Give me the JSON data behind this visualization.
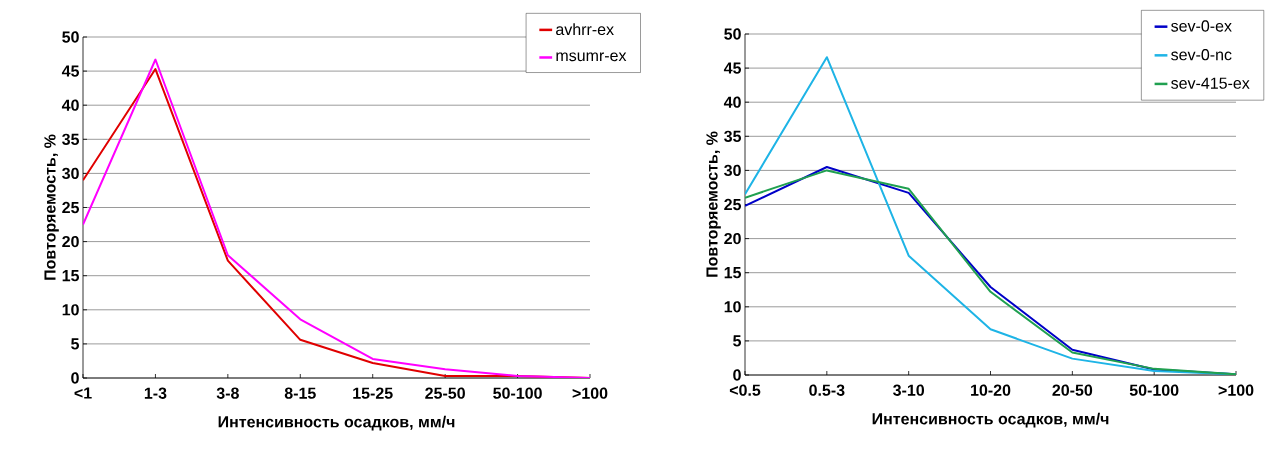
{
  "chart_data": [
    {
      "type": "line",
      "xlabel": "Интенсивность осадков, мм/ч",
      "ylabel": "Повторяемость, %",
      "categories": [
        "<1",
        "1-3",
        "3-8",
        "8-15",
        "15-25",
        "25-50",
        "50-100",
        ">100"
      ],
      "series": [
        {
          "name": "avhrr-ex",
          "color": "#e00000",
          "values": [
            29,
            45.3,
            17.2,
            5.6,
            2.2,
            0.3,
            0.3,
            0
          ]
        },
        {
          "name": "msumr-ex",
          "color": "#ff00ff",
          "values": [
            22.5,
            46.7,
            18,
            8.6,
            2.8,
            1.3,
            0.3,
            0
          ]
        }
      ],
      "ylim": [
        0,
        50
      ],
      "yticks": [
        0,
        5,
        10,
        15,
        20,
        25,
        30,
        35,
        40,
        45,
        50
      ],
      "grid": "y",
      "legend": "top right"
    },
    {
      "type": "line",
      "xlabel": "Интенсивность осадков, мм/ч",
      "ylabel": "Повторяемость, %",
      "categories": [
        "<0.5",
        "0.5-3",
        "3-10",
        "10-20",
        "20-50",
        "50-100",
        ">100"
      ],
      "series": [
        {
          "name": "sev-0-ex",
          "color": "#0000c8",
          "values": [
            24.8,
            30.5,
            26.7,
            12.9,
            3.7,
            0.8,
            0.1
          ]
        },
        {
          "name": "sev-0-nc",
          "color": "#1eb4e6",
          "values": [
            26.5,
            46.6,
            17.5,
            6.7,
            2.4,
            0.6,
            0.1
          ]
        },
        {
          "name": "sev-415-ex",
          "color": "#20a050",
          "values": [
            26,
            30,
            27.3,
            12.2,
            3.3,
            0.9,
            0.1
          ]
        }
      ],
      "ylim": [
        0,
        50
      ],
      "yticks": [
        0,
        5,
        10,
        15,
        20,
        25,
        30,
        35,
        40,
        45,
        50
      ],
      "grid": "y",
      "legend": "top right"
    }
  ]
}
